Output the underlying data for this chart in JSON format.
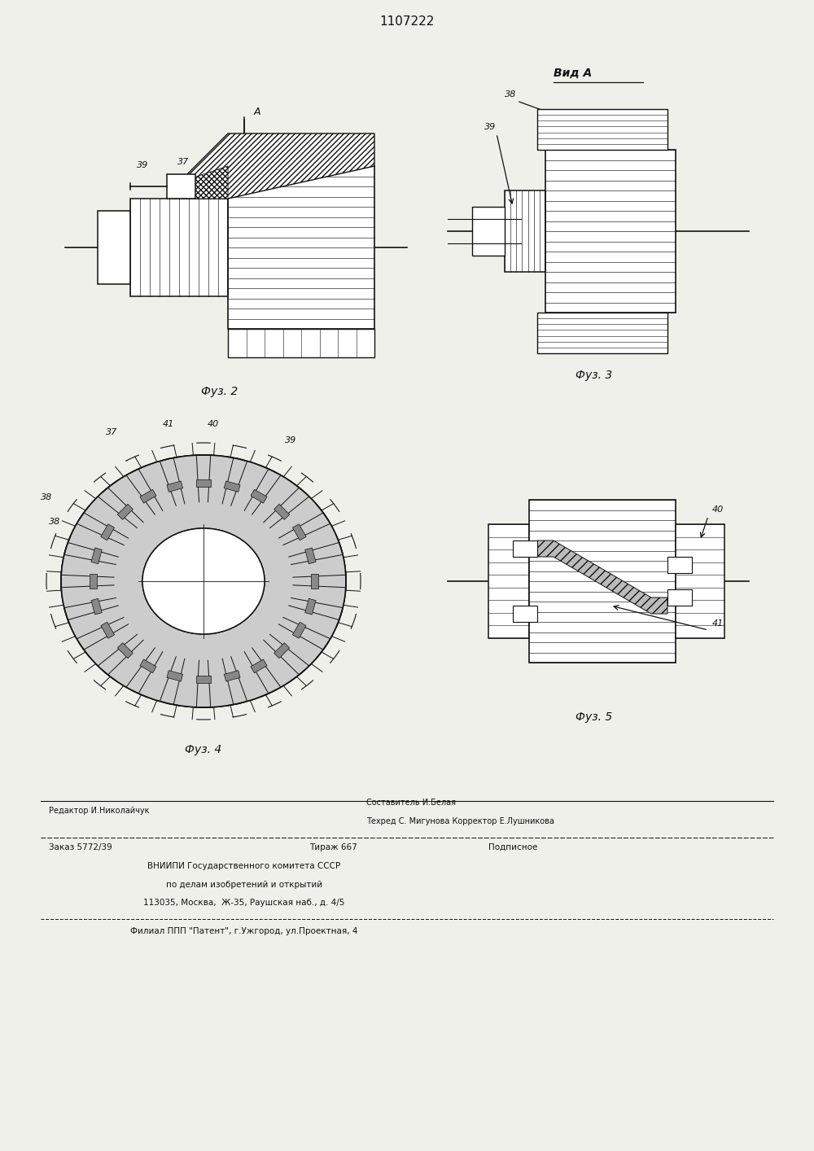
{
  "title_number": "1107222",
  "bg": "#f0f0eb",
  "fig2_label": "Фуз. 2",
  "fig3_label": "Фуз. 3",
  "fig4_label": "Фуз. 4",
  "fig5_label": "Фуз. 5",
  "vid_a": "Вид A",
  "lbl_37": "37",
  "lbl_38": "38",
  "lbl_39": "39",
  "lbl_40": "40",
  "lbl_41": "41",
  "editor": "Редактор И.Николайчук",
  "compiler_label": "Составитель И.Белая",
  "techs": "Техред С. Мигунова Корректор Е.Лушникова",
  "order_line": "Заказ 5772/39",
  "tirazh": "Тираж 667",
  "podpisnoe": "Подписное",
  "vnipi1": "ВНИИПИ Государственного комитета СССР",
  "vnipi2": "по делам изобретений и открытий",
  "vnipi3": "113035, Москва,  Ж-35, Раушская наб., д. 4/5",
  "filial": "Филиал ППП \"Патент\", г.Ужгород, ул.Проектная, 4"
}
